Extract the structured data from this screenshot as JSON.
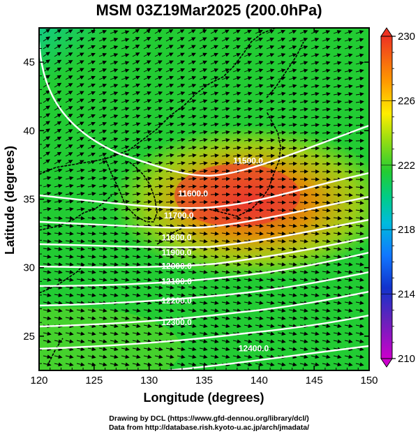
{
  "title": "MSM 03Z19Mar2025 (200.0hPa)",
  "chart_data": {
    "type": "heatmap",
    "title": "MSM 03Z19Mar2025 (200.0hPa)",
    "xlabel": "Longitude (degrees)",
    "ylabel": "Latitude  (degrees)",
    "xlim": [
      120,
      150
    ],
    "ylim": [
      22.5,
      47.5
    ],
    "x_ticks": [
      120,
      125,
      130,
      135,
      140,
      145,
      150
    ],
    "y_ticks": [
      25,
      30,
      35,
      40,
      45
    ],
    "colorbar": {
      "min": 210,
      "max": 230,
      "ticks": [
        210,
        214,
        218,
        222,
        226,
        230
      ],
      "extend": "both",
      "colors": [
        "#cc00cc",
        "#3322cc",
        "#1166ff",
        "#00cccc",
        "#22cc33",
        "#99dd11",
        "#ffee00",
        "#ff9900",
        "#ee3322",
        "#cc2222"
      ]
    },
    "contour_labels": [
      {
        "text": "11500.0",
        "lon": 139.0,
        "lat": 37.6
      },
      {
        "text": "11600.0",
        "lon": 134.0,
        "lat": 35.2
      },
      {
        "text": "11700.0",
        "lon": 132.7,
        "lat": 33.6
      },
      {
        "text": "11800.0",
        "lon": 132.5,
        "lat": 32.0
      },
      {
        "text": "11900.0",
        "lon": 132.5,
        "lat": 30.9
      },
      {
        "text": "12000.0",
        "lon": 132.5,
        "lat": 29.9
      },
      {
        "text": "12100.0",
        "lon": 132.5,
        "lat": 28.8
      },
      {
        "text": "12200.0",
        "lon": 132.5,
        "lat": 27.4
      },
      {
        "text": "12300.0",
        "lon": 132.5,
        "lat": 25.8
      },
      {
        "text": "12400.0",
        "lon": 139.5,
        "lat": 23.9
      }
    ]
  },
  "credits": {
    "line1": "Drawing by DCL (https://www.gfd-dennou.org/library/dcl/)",
    "line2": "Data from http://database.rish.kyoto-u.ac.jp/arch/jmadata/"
  }
}
